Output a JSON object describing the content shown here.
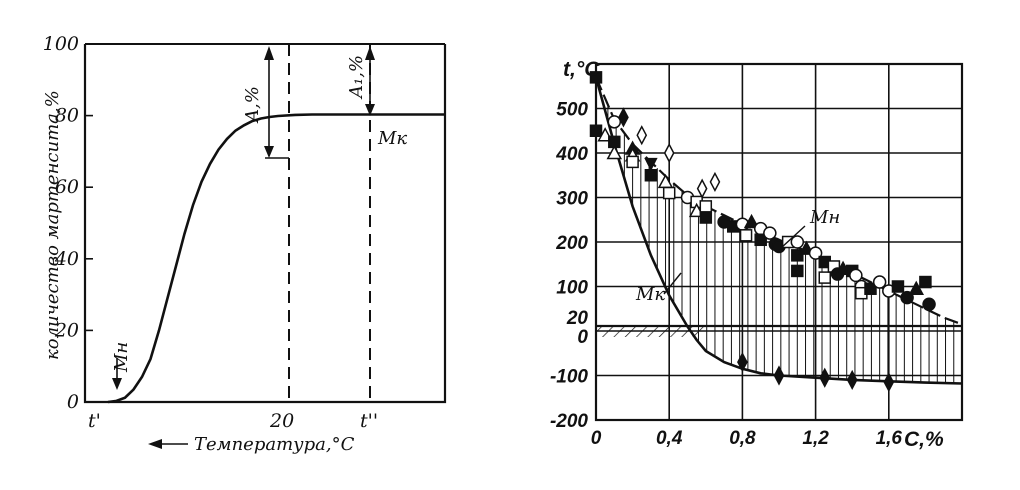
{
  "chart_data": [
    {
      "type": "line",
      "ylabel": "количество мартенсита,%",
      "xlabel": "Температура,°С",
      "xlabel_arrow": "←",
      "ylim": [
        0,
        100
      ],
      "yticks": [
        "0",
        "20",
        "40",
        "60",
        "80",
        "100"
      ],
      "xtick_labels": [
        "t'",
        "20",
        "t''"
      ],
      "annotations": {
        "a_label": "A,%",
        "a1_label": "A₁,%",
        "mh_label": "Mн",
        "mk_label": "Mк"
      },
      "series": [
        {
          "points": [
            [
              0,
              0
            ],
            [
              0.05,
              0.3
            ],
            [
              0.1,
              1.2
            ],
            [
              0.15,
              3.5
            ],
            [
              0.2,
              7
            ],
            [
              0.25,
              12
            ],
            [
              0.3,
              20
            ],
            [
              0.35,
              29
            ],
            [
              0.4,
              38
            ],
            [
              0.45,
              47
            ],
            [
              0.5,
              55
            ],
            [
              0.55,
              61.5
            ],
            [
              0.6,
              66.5
            ],
            [
              0.65,
              70.5
            ],
            [
              0.7,
              73.5
            ],
            [
              0.75,
              75.8
            ],
            [
              0.8,
              77.3
            ],
            [
              0.85,
              78.5
            ],
            [
              0.9,
              79.2
            ],
            [
              0.95,
              79.6
            ],
            [
              1.0,
              79.9
            ],
            [
              1.1,
              80.2
            ],
            [
              1.2,
              80.3
            ]
          ]
        }
      ]
    },
    {
      "type": "scatter",
      "ylabel": "t,°C",
      "xlabel": "C,%",
      "xlim": [
        0,
        2.0
      ],
      "ylim": [
        -200,
        600
      ],
      "xticks": [
        "0",
        "0,4",
        "0,8",
        "1,2",
        "1,6"
      ],
      "yticks": [
        "-200",
        "-100",
        "0",
        "20",
        "100",
        "200",
        "300",
        "400",
        "500"
      ],
      "annotations": {
        "mh_label": "Mн",
        "mk_label": "Mк"
      },
      "ms_curve": [
        [
          0,
          570
        ],
        [
          0.1,
          475
        ],
        [
          0.2,
          420
        ],
        [
          0.3,
          380
        ],
        [
          0.4,
          340
        ],
        [
          0.5,
          305
        ],
        [
          0.6,
          280
        ],
        [
          0.7,
          260
        ],
        [
          0.8,
          240
        ],
        [
          0.9,
          222
        ],
        [
          1.0,
          205
        ],
        [
          1.1,
          188
        ],
        [
          1.2,
          170
        ],
        [
          1.3,
          150
        ],
        [
          1.4,
          130
        ],
        [
          1.5,
          110
        ],
        [
          1.6,
          90
        ],
        [
          1.7,
          70
        ],
        [
          1.8,
          50
        ],
        [
          1.9,
          30
        ],
        [
          2.0,
          15
        ]
      ],
      "mf_curve": [
        [
          0,
          570
        ],
        [
          0.1,
          420
        ],
        [
          0.2,
          280
        ],
        [
          0.3,
          170
        ],
        [
          0.4,
          80
        ],
        [
          0.5,
          10
        ],
        [
          0.55,
          -20
        ],
        [
          0.6,
          -45
        ],
        [
          0.7,
          -70
        ],
        [
          0.8,
          -85
        ],
        [
          0.9,
          -95
        ],
        [
          1.0,
          -100
        ],
        [
          1.2,
          -105
        ],
        [
          1.4,
          -110
        ],
        [
          1.6,
          -113
        ],
        [
          1.8,
          -116
        ],
        [
          2.0,
          -118
        ]
      ],
      "points": [
        {
          "x": 0,
          "y": 570,
          "m": "square-filled"
        },
        {
          "x": 0,
          "y": 450,
          "m": "square-filled"
        },
        {
          "x": 0.05,
          "y": 440,
          "m": "triangle-open"
        },
        {
          "x": 0.1,
          "y": 470,
          "m": "circle-open"
        },
        {
          "x": 0.1,
          "y": 425,
          "m": "square-filled"
        },
        {
          "x": 0.1,
          "y": 400,
          "m": "triangle-open"
        },
        {
          "x": 0.15,
          "y": 480,
          "m": "diamond-filled"
        },
        {
          "x": 0.2,
          "y": 410,
          "m": "triangle-filled"
        },
        {
          "x": 0.2,
          "y": 395,
          "m": "triangle-open"
        },
        {
          "x": 0.2,
          "y": 380,
          "m": "square-open"
        },
        {
          "x": 0.25,
          "y": 440,
          "m": "diamond-open"
        },
        {
          "x": 0.3,
          "y": 375,
          "m": "triangle-down-filled"
        },
        {
          "x": 0.3,
          "y": 350,
          "m": "square-filled"
        },
        {
          "x": 0.38,
          "y": 335,
          "m": "triangle-open"
        },
        {
          "x": 0.4,
          "y": 400,
          "m": "diamond-open"
        },
        {
          "x": 0.4,
          "y": 310,
          "m": "square-open"
        },
        {
          "x": 0.5,
          "y": 300,
          "m": "circle-open"
        },
        {
          "x": 0.55,
          "y": 290,
          "m": "square-open"
        },
        {
          "x": 0.55,
          "y": 270,
          "m": "triangle-open"
        },
        {
          "x": 0.58,
          "y": 320,
          "m": "diamond-open"
        },
        {
          "x": 0.6,
          "y": 280,
          "m": "square-open"
        },
        {
          "x": 0.6,
          "y": 255,
          "m": "square-filled"
        },
        {
          "x": 0.65,
          "y": 335,
          "m": "diamond-open"
        },
        {
          "x": 0.7,
          "y": 245,
          "m": "circle-filled"
        },
        {
          "x": 0.75,
          "y": 235,
          "m": "square-filled"
        },
        {
          "x": 0.8,
          "y": 240,
          "m": "circle-open"
        },
        {
          "x": 0.82,
          "y": 215,
          "m": "square-open"
        },
        {
          "x": 0.85,
          "y": 245,
          "m": "triangle-filled"
        },
        {
          "x": 0.9,
          "y": 230,
          "m": "circle-open"
        },
        {
          "x": 0.9,
          "y": 205,
          "m": "square-filled"
        },
        {
          "x": 0.95,
          "y": 220,
          "m": "circle-open"
        },
        {
          "x": 0.98,
          "y": 195,
          "m": "circle-filled"
        },
        {
          "x": 1.0,
          "y": 190,
          "m": "circle-filled"
        },
        {
          "x": 1.05,
          "y": 200,
          "m": "square-open"
        },
        {
          "x": 1.1,
          "y": 200,
          "m": "circle-open"
        },
        {
          "x": 1.1,
          "y": 170,
          "m": "square-filled"
        },
        {
          "x": 1.1,
          "y": 135,
          "m": "square-filled"
        },
        {
          "x": 1.15,
          "y": 185,
          "m": "triangle-filled"
        },
        {
          "x": 1.2,
          "y": 175,
          "m": "circle-open"
        },
        {
          "x": 1.25,
          "y": 155,
          "m": "square-filled"
        },
        {
          "x": 1.25,
          "y": 120,
          "m": "square-open"
        },
        {
          "x": 1.3,
          "y": 145,
          "m": "square-open"
        },
        {
          "x": 1.32,
          "y": 128,
          "m": "circle-filled"
        },
        {
          "x": 1.35,
          "y": 140,
          "m": "triangle-filled"
        },
        {
          "x": 1.4,
          "y": 135,
          "m": "square-filled"
        },
        {
          "x": 1.42,
          "y": 125,
          "m": "circle-open"
        },
        {
          "x": 1.45,
          "y": 100,
          "m": "circle-open"
        },
        {
          "x": 1.45,
          "y": 85,
          "m": "square-open"
        },
        {
          "x": 1.5,
          "y": 95,
          "m": "square-filled"
        },
        {
          "x": 1.55,
          "y": 110,
          "m": "circle-open"
        },
        {
          "x": 1.6,
          "y": 90,
          "m": "circle-open"
        },
        {
          "x": 1.65,
          "y": 100,
          "m": "square-filled"
        },
        {
          "x": 1.7,
          "y": 75,
          "m": "circle-filled"
        },
        {
          "x": 1.75,
          "y": 95,
          "m": "triangle-filled"
        },
        {
          "x": 1.8,
          "y": 110,
          "m": "square-filled"
        },
        {
          "x": 1.82,
          "y": 60,
          "m": "circle-filled"
        },
        {
          "x": 0.8,
          "y": -70,
          "m": "diamond-filled"
        },
        {
          "x": 1.0,
          "y": -100,
          "m": "diamond-filled"
        },
        {
          "x": 1.25,
          "y": -105,
          "m": "diamond-filled"
        },
        {
          "x": 1.4,
          "y": -110,
          "m": "diamond-filled"
        },
        {
          "x": 1.6,
          "y": -115,
          "m": "diamond-filled"
        }
      ]
    }
  ]
}
